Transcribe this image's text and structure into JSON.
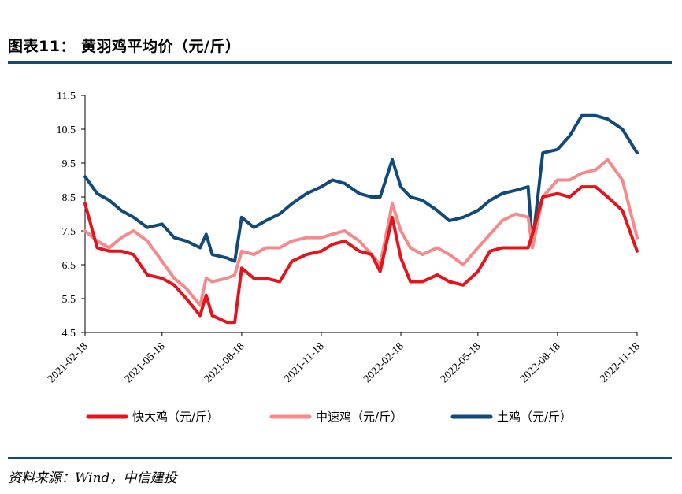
{
  "title": "图表11： 黄羽鸡平均价（元/斤）",
  "source": "资料来源：Wind，中信建投",
  "chart_data": {
    "type": "line",
    "title": "黄羽鸡平均价（元/斤）",
    "xlabel": "",
    "ylabel": "",
    "ylim": [
      4.5,
      11.5
    ],
    "yticks": [
      "4.5",
      "5.5",
      "6.5",
      "7.5",
      "8.5",
      "9.5",
      "10.5",
      "11.5"
    ],
    "x_tick_labels": [
      "2021-02-18",
      "2021-05-18",
      "2021-08-18",
      "2021-11-18",
      "2022-02-18",
      "2022-05-18",
      "2022-08-18",
      "2022-11-18"
    ],
    "x": [
      "2021-02-18",
      "2021-03-04",
      "2021-03-18",
      "2021-04-01",
      "2021-04-15",
      "2021-05-01",
      "2021-05-18",
      "2021-06-01",
      "2021-06-15",
      "2021-07-01",
      "2021-07-08",
      "2021-07-15",
      "2021-08-01",
      "2021-08-10",
      "2021-08-18",
      "2021-09-01",
      "2021-09-15",
      "2021-10-01",
      "2021-10-15",
      "2021-11-01",
      "2021-11-18",
      "2021-12-01",
      "2021-12-15",
      "2022-01-01",
      "2022-01-15",
      "2022-01-25",
      "2022-02-08",
      "2022-02-18",
      "2022-03-01",
      "2022-03-15",
      "2022-04-01",
      "2022-04-15",
      "2022-05-01",
      "2022-05-18",
      "2022-06-01",
      "2022-06-15",
      "2022-07-01",
      "2022-07-15",
      "2022-07-20",
      "2022-08-01",
      "2022-08-18",
      "2022-09-01",
      "2022-09-15",
      "2022-10-01",
      "2022-10-15",
      "2022-11-01",
      "2022-11-18"
    ],
    "series": [
      {
        "name": "快大鸡（元/斤）",
        "color": "#e3141b",
        "values": [
          8.3,
          7.0,
          6.9,
          6.9,
          6.8,
          6.2,
          6.1,
          5.9,
          5.5,
          5.0,
          5.6,
          5.0,
          4.8,
          4.8,
          6.4,
          6.1,
          6.1,
          6.0,
          6.6,
          6.8,
          6.9,
          7.1,
          7.2,
          6.9,
          6.8,
          6.3,
          7.9,
          6.7,
          6.0,
          6.0,
          6.2,
          6.0,
          5.9,
          6.3,
          6.9,
          7.0,
          7.0,
          7.0,
          7.4,
          8.5,
          8.6,
          8.5,
          8.8,
          8.8,
          8.5,
          8.1,
          6.9
        ]
      },
      {
        "name": "中速鸡（元/斤）",
        "color": "#f58a8a",
        "values": [
          7.5,
          7.2,
          7.0,
          7.3,
          7.5,
          7.2,
          6.6,
          6.1,
          5.8,
          5.3,
          6.1,
          6.0,
          6.1,
          6.2,
          6.9,
          6.8,
          7.0,
          7.0,
          7.2,
          7.3,
          7.3,
          7.4,
          7.5,
          7.2,
          6.8,
          6.5,
          8.3,
          7.5,
          7.0,
          6.8,
          7.0,
          6.8,
          6.5,
          7.0,
          7.4,
          7.8,
          8.0,
          7.9,
          7.0,
          8.5,
          9.0,
          9.0,
          9.2,
          9.3,
          9.6,
          9.0,
          7.3
        ]
      },
      {
        "name": "土鸡（元/斤）",
        "color": "#114a7a",
        "values": [
          9.1,
          8.6,
          8.4,
          8.1,
          7.9,
          7.6,
          7.7,
          7.3,
          7.2,
          7.0,
          7.4,
          6.8,
          6.7,
          6.6,
          7.9,
          7.6,
          7.8,
          8.0,
          8.3,
          8.6,
          8.8,
          9.0,
          8.9,
          8.6,
          8.5,
          8.5,
          9.6,
          8.8,
          8.5,
          8.4,
          8.1,
          7.8,
          7.9,
          8.1,
          8.4,
          8.6,
          8.7,
          8.8,
          7.1,
          9.8,
          9.9,
          10.3,
          10.9,
          10.9,
          10.8,
          10.5,
          9.8
        ]
      }
    ],
    "legend_position": "bottom"
  }
}
